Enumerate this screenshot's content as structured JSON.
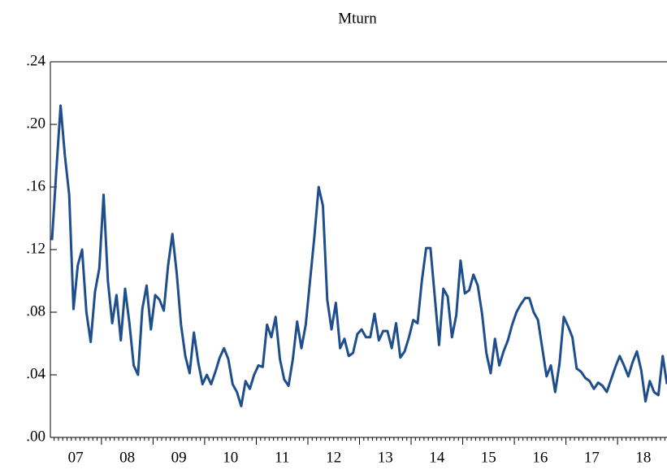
{
  "chart_data": {
    "type": "line",
    "title": "Mturn",
    "categories": [
      null,
      null,
      null,
      null,
      null,
      null,
      "07",
      null,
      null,
      null,
      null,
      null,
      null,
      null,
      null,
      null,
      null,
      null,
      "08",
      null,
      null,
      null,
      null,
      null,
      null,
      null,
      null,
      null,
      null,
      null,
      "09",
      null,
      null,
      null,
      null,
      null,
      null,
      null,
      null,
      null,
      null,
      null,
      "10",
      null,
      null,
      null,
      null,
      null,
      null,
      null,
      null,
      null,
      null,
      null,
      "11",
      null,
      null,
      null,
      null,
      null,
      null,
      null,
      null,
      null,
      null,
      null,
      "12",
      null,
      null,
      null,
      null,
      null,
      null,
      null,
      null,
      null,
      null,
      null,
      "13",
      null,
      null,
      null,
      null,
      null,
      null,
      null,
      null,
      null,
      null,
      null,
      "14",
      null,
      null,
      null,
      null,
      null,
      null,
      null,
      null,
      null,
      null,
      null,
      "15",
      null,
      null,
      null,
      null,
      null,
      null,
      null,
      null,
      null,
      null,
      null,
      "16",
      null,
      null,
      null,
      null,
      null,
      null,
      null,
      null,
      null,
      null,
      null,
      "17",
      null,
      null,
      null,
      null,
      null,
      null,
      null,
      null,
      null,
      null,
      null,
      "18",
      null,
      null,
      null,
      null,
      null
    ],
    "values": [
      0.126,
      0.17,
      0.212,
      0.18,
      0.155,
      0.082,
      0.11,
      0.12,
      0.08,
      0.061,
      0.093,
      0.108,
      0.155,
      0.1,
      0.073,
      0.091,
      0.062,
      0.095,
      0.073,
      0.046,
      0.04,
      0.082,
      0.097,
      0.069,
      0.091,
      0.088,
      0.081,
      0.11,
      0.13,
      0.105,
      0.072,
      0.052,
      0.041,
      0.067,
      0.048,
      0.034,
      0.04,
      0.034,
      0.042,
      0.051,
      0.057,
      0.05,
      0.034,
      0.029,
      0.02,
      0.036,
      0.031,
      0.04,
      0.046,
      0.045,
      0.072,
      0.064,
      0.077,
      0.05,
      0.037,
      0.033,
      0.05,
      0.074,
      0.057,
      0.072,
      0.1,
      0.128,
      0.16,
      0.148,
      0.088,
      0.069,
      0.086,
      0.057,
      0.063,
      0.052,
      0.054,
      0.066,
      0.069,
      0.064,
      0.064,
      0.079,
      0.062,
      0.068,
      0.068,
      0.057,
      0.073,
      0.051,
      0.055,
      0.064,
      0.075,
      0.073,
      0.1,
      0.121,
      0.121,
      0.09,
      0.059,
      0.095,
      0.09,
      0.064,
      0.078,
      0.113,
      0.092,
      0.094,
      0.104,
      0.097,
      0.079,
      0.054,
      0.041,
      0.063,
      0.046,
      0.055,
      0.062,
      0.072,
      0.08,
      0.085,
      0.089,
      0.089,
      0.08,
      0.075,
      0.057,
      0.039,
      0.046,
      0.029,
      0.047,
      0.077,
      0.071,
      0.064,
      0.044,
      0.042,
      0.038,
      0.036,
      0.031,
      0.035,
      0.033,
      0.029,
      0.037,
      0.045,
      0.052,
      0.046,
      0.039,
      0.048,
      0.055,
      0.043,
      0.023,
      0.036,
      0.029,
      0.027,
      0.052,
      0.034
    ],
    "color": "#1f4e8c",
    "ylim": [
      0,
      0.24
    ],
    "yticks": [
      {
        "value": 0,
        "label": ".00"
      },
      {
        "value": 0.04,
        "label": ".04"
      },
      {
        "value": 0.08,
        "label": ".08"
      },
      {
        "value": 0.12,
        "label": ".12"
      },
      {
        "value": 0.16,
        "label": ".16"
      },
      {
        "value": 0.2,
        "label": ".20"
      },
      {
        "value": 0.24,
        "label": ".24"
      }
    ],
    "grid": false
  }
}
